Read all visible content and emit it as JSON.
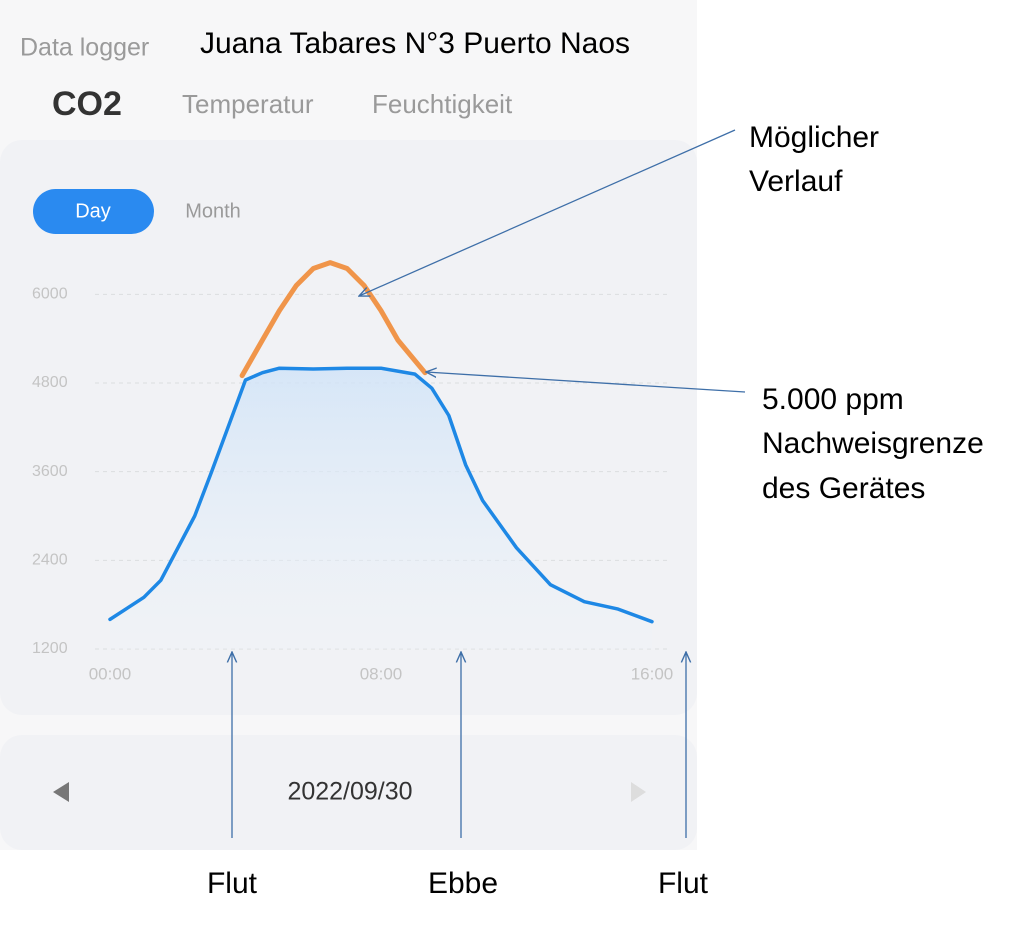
{
  "app": {
    "label": "Data logger",
    "tabs": [
      "CO2",
      "Temperatur",
      "Feuchtigkeit"
    ],
    "range_tabs": [
      "Day",
      "Month"
    ],
    "date": "2022/09/30"
  },
  "annotations": {
    "title": "Juana Tabares N°3 Puerto Naos",
    "possible_course": [
      "Möglicher",
      "Verlauf"
    ],
    "detection_limit": [
      "5.000 ppm",
      "Nachweisgrenze",
      "des Gerätes"
    ],
    "tides": [
      "Flut",
      "Ebbe",
      "Flut"
    ]
  },
  "chart_data": {
    "type": "line",
    "xlim": [
      0,
      16
    ],
    "xticks": [
      {
        "value": 0,
        "label": "00:00"
      },
      {
        "value": 8,
        "label": "08:00"
      },
      {
        "value": 16,
        "label": "16:00"
      }
    ],
    "ylim": [
      1200,
      6600
    ],
    "yticks": [
      1200,
      2400,
      3600,
      4800,
      6000
    ],
    "grid": true,
    "series": [
      {
        "color": "#1e88e5",
        "area": true,
        "x": [
          0,
          1,
          1.5,
          2.5,
          3,
          4,
          4.5,
          5,
          6,
          7,
          8,
          9,
          9.5,
          10,
          10.5,
          11,
          12,
          13,
          14,
          15,
          16
        ],
        "values": [
          1600,
          1900,
          2130,
          3000,
          3600,
          4840,
          4940,
          5000,
          4990,
          5000,
          5000,
          4920,
          4730,
          4360,
          3690,
          3210,
          2570,
          2070,
          1840,
          1740,
          1570
        ]
      },
      {
        "color": "#f0954a",
        "area": false,
        "x": [
          3.9,
          4.5,
          5,
          5.5,
          6,
          6.5,
          7,
          7.5,
          8,
          8.5,
          9.3
        ],
        "values": [
          4900,
          5380,
          5780,
          6120,
          6350,
          6430,
          6350,
          6120,
          5780,
          5380,
          4940
        ]
      }
    ]
  }
}
